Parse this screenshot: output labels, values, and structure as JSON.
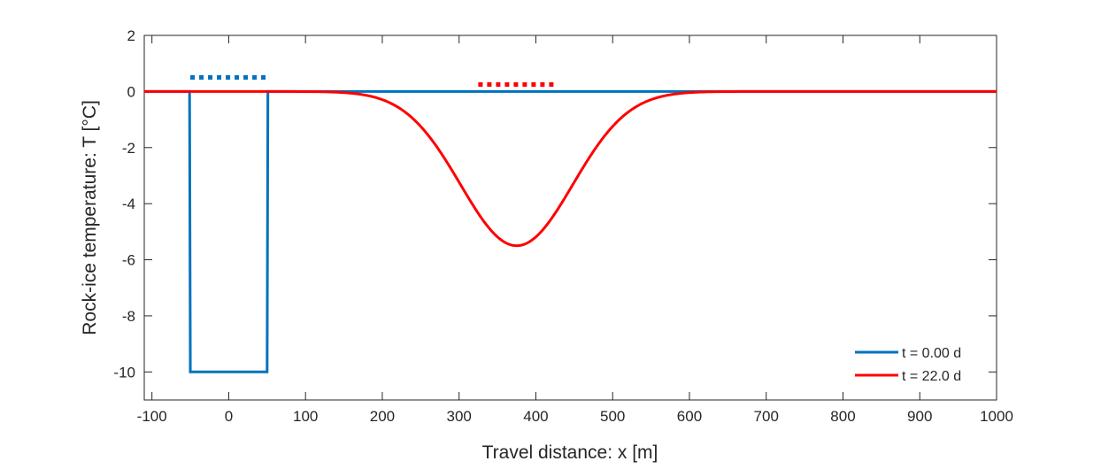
{
  "chart_data": {
    "type": "line",
    "title": "",
    "xlabel": "Travel distance: x [m]",
    "ylabel": "Rock-ice temperature: T [°C]",
    "xlim": [
      -110,
      1000
    ],
    "ylim": [
      -11,
      2
    ],
    "xticks": [
      -100,
      0,
      100,
      200,
      300,
      400,
      500,
      600,
      700,
      800,
      900,
      1000
    ],
    "yticks": [
      2,
      0,
      -2,
      -4,
      -6,
      -8,
      -10
    ],
    "grid": false,
    "legend_position": "bottom-right",
    "series": [
      {
        "name": "t = 0.00 d",
        "color": "#0072BD",
        "shape": "box pulse",
        "baseline": 0,
        "pulse_value": -10,
        "pulse_x": [
          -50,
          50
        ],
        "marker_bar": {
          "x": [
            -50,
            50
          ],
          "y": 0.5
        }
      },
      {
        "name": "t = 22.0 d",
        "color": "#FF0000",
        "shape": "diffused pulse",
        "baseline": 0,
        "min_value": -5.5,
        "min_x": 375,
        "marker_bar": {
          "x": [
            325,
            425
          ],
          "y": 0.25
        }
      }
    ]
  }
}
